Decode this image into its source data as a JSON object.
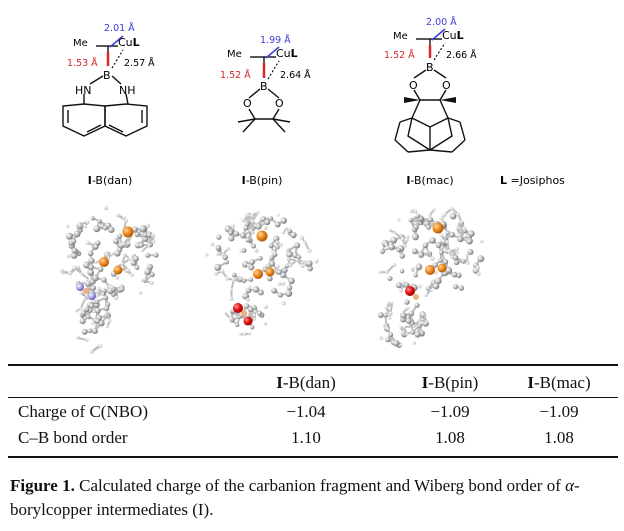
{
  "structures": [
    {
      "name": "I-B(dan)",
      "name_bold": "I",
      "name_rest": "-B(dan)",
      "me": "Me",
      "cu": "Cu",
      "L": "L",
      "d_cb": "1.53 Å",
      "d_ccu": "2.01 Å",
      "d_bcu": "2.57 Å",
      "hn": "HN",
      "nh": "NH",
      "b": "B"
    },
    {
      "name": "I-B(pin)",
      "name_bold": "I",
      "name_rest": "-B(pin)",
      "me": "Me",
      "cu": "Cu",
      "L": "L",
      "d_cb": "1.52 Å",
      "d_ccu": "1.99 Å",
      "d_bcu": "2.64 Å",
      "o1": "O",
      "o2": "O",
      "b": "B"
    },
    {
      "name": "I-B(mac)",
      "name_bold": "I",
      "name_rest": "-B(mac)",
      "me": "Me",
      "cu": "Cu",
      "L": "L",
      "d_cb": "1.52 Å",
      "d_ccu": "2.00 Å",
      "d_bcu": "2.66 Å",
      "o1": "O",
      "o2": "O",
      "b": "B"
    }
  ],
  "ligand_note": {
    "L": "L",
    "text": " =Josiphos"
  },
  "table": {
    "headers": [
      {
        "bold": "I",
        "rest": "-B(dan)"
      },
      {
        "bold": "I",
        "rest": "-B(pin)"
      },
      {
        "bold": "I",
        "rest": "-B(mac)"
      }
    ],
    "rows": [
      {
        "label": "Charge of C(NBO)",
        "values": [
          "−1.04",
          "−1.09",
          "−1.09"
        ]
      },
      {
        "label": "C–B bond order",
        "values": [
          "1.10",
          "1.08",
          "1.08"
        ]
      }
    ]
  },
  "caption": {
    "label": "Figure 1.",
    "text_1": " Calculated charge of the carbanion fragment and Wiberg bond order of ",
    "alpha": "α",
    "text_2": "-borylcopper intermediates (",
    "roman": "I",
    "text_3": ")."
  },
  "colors": {
    "red_distance": "#d42a2a",
    "blue_distance": "#3f3fd8",
    "copper_atoms": "#e07a10",
    "boron_atoms": "#f0b27a",
    "oxygen_atoms": "#e81010",
    "nitrogen_atoms": "#a8a8ee",
    "carbon_atoms": "#9a9a9a"
  }
}
